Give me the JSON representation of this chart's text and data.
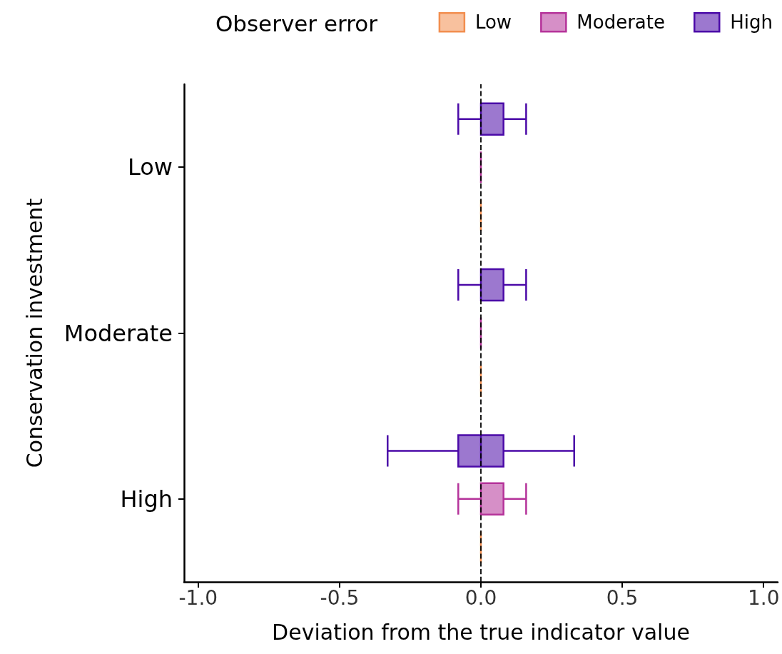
{
  "chart_data": {
    "type": "box",
    "orientation": "horizontal",
    "xlabel": "Deviation from the true indicator value",
    "ylabel": "Conservation investment",
    "legend_title": "Observer error",
    "legend": "top right",
    "categories": [
      "Low",
      "Moderate",
      "High"
    ],
    "xlim": [
      -1.05,
      1.05
    ],
    "xticks": [
      {
        "value": -1,
        "label": "-1.0"
      },
      {
        "value": -0.5,
        "label": "-0.5"
      },
      {
        "value": 0,
        "label": "0.0"
      },
      {
        "value": 0.5,
        "label": "0.5"
      },
      {
        "value": 1,
        "label": "1.0"
      }
    ],
    "grid": false,
    "ref_lines": [
      {
        "axis": "x",
        "value": 0,
        "label": null,
        "color": "#000000",
        "line_style": "dashed"
      }
    ],
    "series": [
      {
        "name": "Low",
        "color": "#f28e4f",
        "boxes": [
          {
            "low": 0,
            "q1": 0,
            "median": 0,
            "q3": 0,
            "high": 0
          },
          {
            "low": 0,
            "q1": 0,
            "median": 0,
            "q3": 0,
            "high": 0
          },
          {
            "low": 0,
            "q1": 0,
            "median": 0,
            "q3": 0,
            "high": 0
          }
        ]
      },
      {
        "name": "Moderate",
        "color": "#b5339a",
        "boxes": [
          {
            "low": 0,
            "q1": 0,
            "median": 0,
            "q3": 0,
            "high": 0
          },
          {
            "low": 0,
            "q1": 0,
            "median": 0,
            "q3": 0,
            "high": 0
          },
          {
            "low": -0.08,
            "q1": 0,
            "median": 0,
            "q3": 0.08,
            "high": 0.16
          }
        ]
      },
      {
        "name": "High",
        "color": "#4b0aa8",
        "boxes": [
          {
            "low": -0.08,
            "q1": 0,
            "median": 0,
            "q3": 0.08,
            "high": 0.16
          },
          {
            "low": -0.08,
            "q1": 0,
            "median": 0,
            "q3": 0.08,
            "high": 0.16
          },
          {
            "low": -0.33,
            "q1": -0.08,
            "median": 0,
            "q3": 0.08,
            "high": 0.33
          }
        ]
      }
    ]
  }
}
